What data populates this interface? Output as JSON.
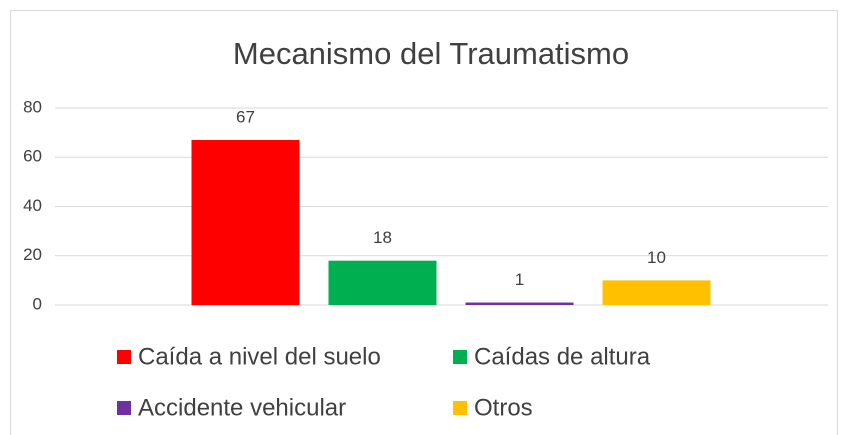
{
  "chart_data": {
    "type": "bar",
    "title": "Mecanismo del Traumatismo",
    "categories": [
      null
    ],
    "series": [
      {
        "name": "Caída a nivel del suelo",
        "color": "#ff0000",
        "values": [
          67
        ]
      },
      {
        "name": "Caídas de altura",
        "color": "#00b050",
        "values": [
          18
        ]
      },
      {
        "name": "Accidente vehicular",
        "color": "#7030a0",
        "values": [
          1
        ]
      },
      {
        "name": "Otros",
        "color": "#ffc000",
        "values": [
          10
        ]
      }
    ],
    "ylim": [
      0,
      80
    ],
    "yticks": [
      0,
      20,
      40,
      60,
      80
    ],
    "grid": true,
    "legend": "bottom"
  }
}
